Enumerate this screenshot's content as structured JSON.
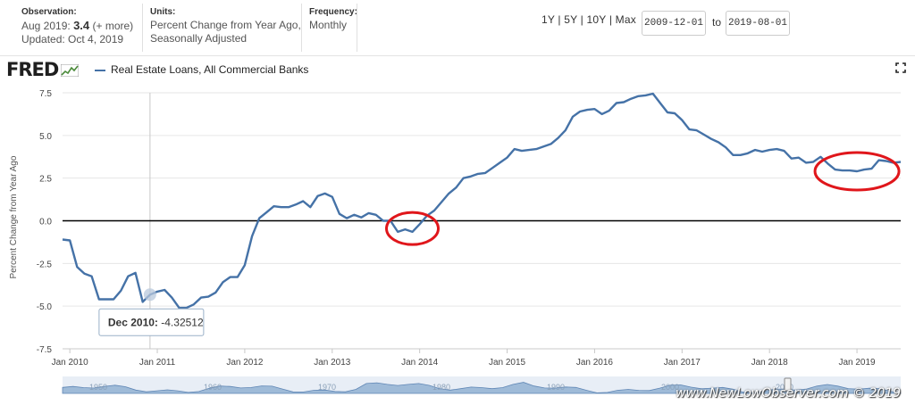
{
  "header": {
    "observation_label": "Observation:",
    "observation_date": "Aug 2019:",
    "observation_value": "3.4",
    "observation_more": "(+ more)",
    "updated": "Updated: Oct 4, 2019",
    "units_label": "Units:",
    "units_line1": "Percent Change from Year Ago,",
    "units_line2": "Seasonally Adjusted",
    "frequency_label": "Frequency:",
    "frequency_value": "Monthly",
    "ranges": [
      "1Y",
      "5Y",
      "10Y",
      "Max"
    ],
    "start_date": "2009-12-01",
    "to_label": "to",
    "end_date": "2019-08-01"
  },
  "logo": "FRED",
  "fullscreen_icon": "fullscreen-icon",
  "watermark": "www.NewLowObserver.com © 2019",
  "tooltip": {
    "label": "Dec 2010:",
    "value": "-4.32512"
  },
  "colors": {
    "series": "#4572a7",
    "annotation": "#e0161b",
    "zero_line": "#000000",
    "navigator": "#9fbbd8"
  },
  "chart_data": {
    "type": "line",
    "title": "",
    "ylabel": "Percent Change from Year Ago",
    "ylim": [
      -7.5,
      7.5
    ],
    "yticks": [
      "7.5",
      "5.0",
      "2.5",
      "0.0",
      "-2.5",
      "-5.0",
      "-7.5"
    ],
    "xlabels": [
      "Jan 2010",
      "Jan 2011",
      "Jan 2012",
      "Jan 2013",
      "Jan 2014",
      "Jan 2015",
      "Jan 2016",
      "Jan 2017",
      "Jan 2018",
      "Jan 2019"
    ],
    "navigator_labels": [
      "1950",
      "1960",
      "1970",
      "1980",
      "1990",
      "2000",
      "2010"
    ],
    "legend_position": "top-left",
    "series": [
      {
        "name": "Real Estate Loans, All Commercial Banks",
        "start": "2009-12",
        "values": [
          -1.1,
          -1.15,
          -2.7,
          -3.1,
          -3.25,
          -4.6,
          -4.6,
          -4.6,
          -4.1,
          -3.25,
          -3.05,
          -4.75,
          -4.33,
          -4.15,
          -4.05,
          -4.5,
          -5.1,
          -5.1,
          -4.9,
          -4.5,
          -4.45,
          -4.2,
          -3.6,
          -3.3,
          -3.3,
          -2.6,
          -0.9,
          0.15,
          0.5,
          0.85,
          0.8,
          0.8,
          0.95,
          1.15,
          0.8,
          1.45,
          1.6,
          1.4,
          0.4,
          0.15,
          0.35,
          0.2,
          0.45,
          0.35,
          0.0,
          0.0,
          -0.65,
          -0.5,
          -0.65,
          -0.2,
          0.3,
          0.6,
          1.1,
          1.6,
          1.95,
          2.5,
          2.6,
          2.75,
          2.8,
          3.1,
          3.4,
          3.7,
          4.2,
          4.1,
          4.15,
          4.2,
          4.35,
          4.5,
          4.85,
          5.3,
          6.1,
          6.4,
          6.5,
          6.55,
          6.25,
          6.45,
          6.9,
          6.95,
          7.15,
          7.3,
          7.35,
          7.45,
          6.9,
          6.35,
          6.3,
          5.9,
          5.35,
          5.3,
          5.05,
          4.8,
          4.6,
          4.3,
          3.85,
          3.85,
          3.95,
          4.15,
          4.05,
          4.15,
          4.2,
          4.1,
          3.65,
          3.7,
          3.4,
          3.45,
          3.75,
          3.35,
          3.0,
          2.95,
          2.95,
          2.9,
          3.0,
          3.05,
          3.55,
          3.5,
          3.4,
          3.45
        ]
      }
    ],
    "annotations": [
      {
        "type": "ellipse",
        "center": [
          "2013-12",
          -0.45
        ]
      },
      {
        "type": "ellipse",
        "center": [
          "2019-01",
          2.9
        ]
      }
    ]
  }
}
